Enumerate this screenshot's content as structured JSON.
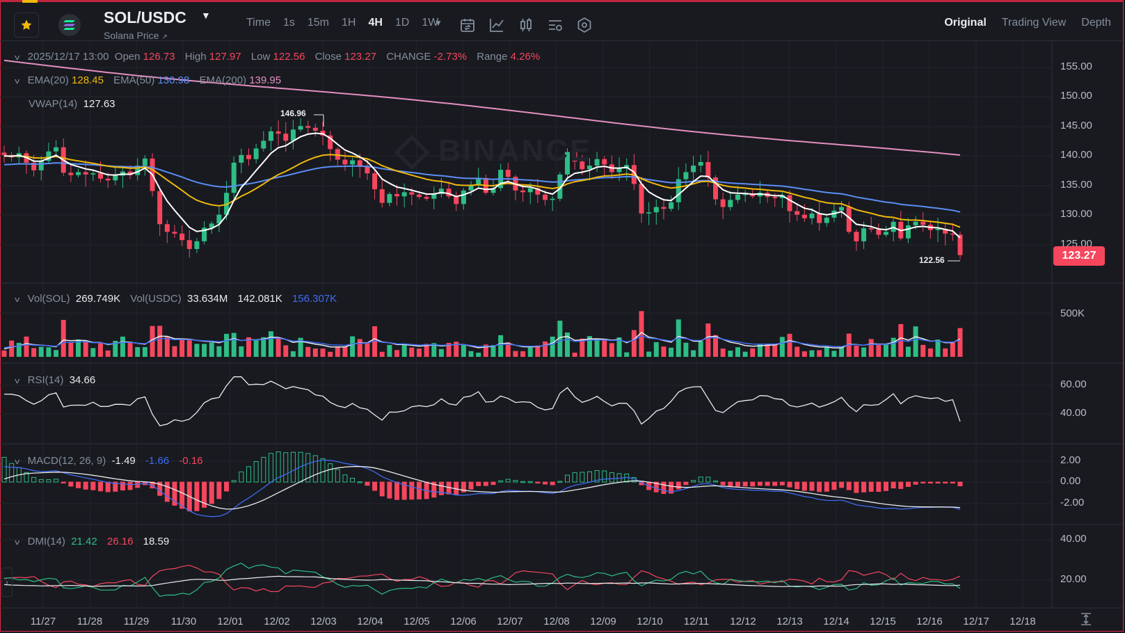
{
  "header": {
    "favorite_icon": "star-icon",
    "coin_icon": "solana-logo",
    "pair": "SOL/USDC",
    "subtitle": "Solana Price",
    "intervals": [
      {
        "label": "Time",
        "active": false
      },
      {
        "label": "1s",
        "active": false
      },
      {
        "label": "15m",
        "active": false
      },
      {
        "label": "1H",
        "active": false
      },
      {
        "label": "4H",
        "active": true
      },
      {
        "label": "1D",
        "active": false
      },
      {
        "label": "1W",
        "active": false
      }
    ],
    "tools": [
      "calendar-icon",
      "indicator-chart-icon",
      "candle-style-icon",
      "chart-settings-icon",
      "hexagon-settings-icon"
    ],
    "views": [
      {
        "label": "Original",
        "active": true
      },
      {
        "label": "Trading View",
        "active": false
      },
      {
        "label": "Depth",
        "active": false
      }
    ]
  },
  "ohlc": {
    "datetime": "2025/12/17 13:00",
    "open_label": "Open",
    "open": "126.73",
    "high_label": "High",
    "high": "127.97",
    "low_label": "Low",
    "low": "122.56",
    "close_label": "Close",
    "close": "123.27",
    "change_label": "CHANGE",
    "change": "-2.73%",
    "range_label": "Range",
    "range": "4.26%"
  },
  "ema": {
    "ema20_label": "EMA(20)",
    "ema20": "128.45",
    "ema50_label": "EMA(50)",
    "ema50": "130.98",
    "ema200_label": "EMA(200)",
    "ema200": "139.95"
  },
  "vwap": {
    "label": "VWAP(14)",
    "value": "127.63"
  },
  "volume": {
    "sol_label": "Vol(SOL)",
    "sol": "269.749K",
    "usdc_label": "Vol(USDC)",
    "usdc": "33.634M",
    "ma1": "142.081K",
    "ma2": "156.307K"
  },
  "rsi": {
    "label": "RSI(14)",
    "value": "34.66"
  },
  "macd": {
    "label": "MACD(12, 26, 9)",
    "dif": "-1.49",
    "dea": "-1.66",
    "hist": "-0.16"
  },
  "dmi": {
    "label": "DMI(14)",
    "pdi": "21.42",
    "mdi": "26.16",
    "adx": "18.59"
  },
  "price_axis": [
    "155.00",
    "150.00",
    "145.00",
    "140.00",
    "135.00",
    "130.00",
    "125.00"
  ],
  "current_price": "123.27",
  "high_marker": "146.96",
  "low_marker": "122.56",
  "volume_axis": [
    "500K"
  ],
  "rsi_axis": [
    "60.00",
    "40.00"
  ],
  "macd_axis": [
    "2.00",
    "0.00",
    "-2.00"
  ],
  "dmi_axis": [
    "40.00",
    "20.00"
  ],
  "dates": [
    "11/27",
    "11/28",
    "11/29",
    "11/30",
    "12/01",
    "12/02",
    "12/03",
    "12/04",
    "12/05",
    "12/06",
    "12/07",
    "12/08",
    "12/09",
    "12/10",
    "12/11",
    "12/12",
    "12/13",
    "12/14",
    "12/15",
    "12/16",
    "12/17",
    "12/18"
  ],
  "watermark": "BINANCE",
  "colors": {
    "up": "#2ebd85",
    "down": "#f6465d",
    "ema20": "#f0b90b",
    "ema50": "#5b8ef5",
    "ema200": "#e48fc0",
    "vwap": "#ffffff"
  },
  "chart_data": {
    "type": "candlestick",
    "interval": "4H",
    "x_range": [
      "11/26",
      "12/18"
    ],
    "ylim": [
      122,
      156
    ],
    "closes": [
      140.2,
      139.8,
      140.5,
      138.9,
      137.6,
      139.2,
      140.8,
      141.5,
      137.2,
      136.8,
      137.3,
      136.9,
      137.1,
      136.2,
      135.9,
      136.7,
      137.4,
      136.8,
      138.4,
      139.6,
      134.1,
      128.5,
      127.2,
      126.9,
      125.8,
      124.3,
      125.6,
      127.9,
      128.6,
      130.1,
      133.8,
      138.9,
      140.2,
      139.5,
      141.3,
      142.6,
      144.2,
      143.8,
      142.6,
      144.5,
      145.1,
      144.8,
      144.3,
      143.5,
      141.2,
      139.4,
      138.6,
      139.3,
      138.2,
      137.1,
      134.4,
      132.1,
      133.6,
      133.2,
      133.9,
      133.5,
      133.1,
      132.8,
      133.6,
      134.5,
      133.2,
      131.9,
      134.2,
      135.1,
      136.3,
      133.8,
      134.6,
      137.7,
      136.5,
      134.2,
      133.9,
      134.6,
      133.5,
      132.6,
      132.8,
      136.9,
      140.7,
      139.1,
      137.8,
      138.4,
      139.5,
      138.6,
      137.3,
      137.9,
      138.5,
      135.3,
      130.3,
      130.5,
      131.4,
      131.1,
      132.2,
      136.1,
      137.3,
      138.4,
      139.0,
      136.4,
      132.7,
      131.4,
      132.6,
      133.5,
      133.6,
      133.2,
      133.8,
      133.1,
      132.9,
      133.4,
      130.7,
      130.1,
      129.5,
      130.3,
      128.7,
      129.6,
      130.8,
      131.4,
      127.2,
      125.6,
      127.8,
      127.6,
      126.7,
      127.2,
      128.9,
      126.1,
      128.3,
      128.9,
      128.4,
      127.5,
      127.7,
      126.9,
      126.73,
      123.27
    ],
    "rsi_range": [
      20,
      70
    ],
    "macd_range": [
      -3,
      3
    ],
    "dmi_range": [
      10,
      45
    ]
  }
}
